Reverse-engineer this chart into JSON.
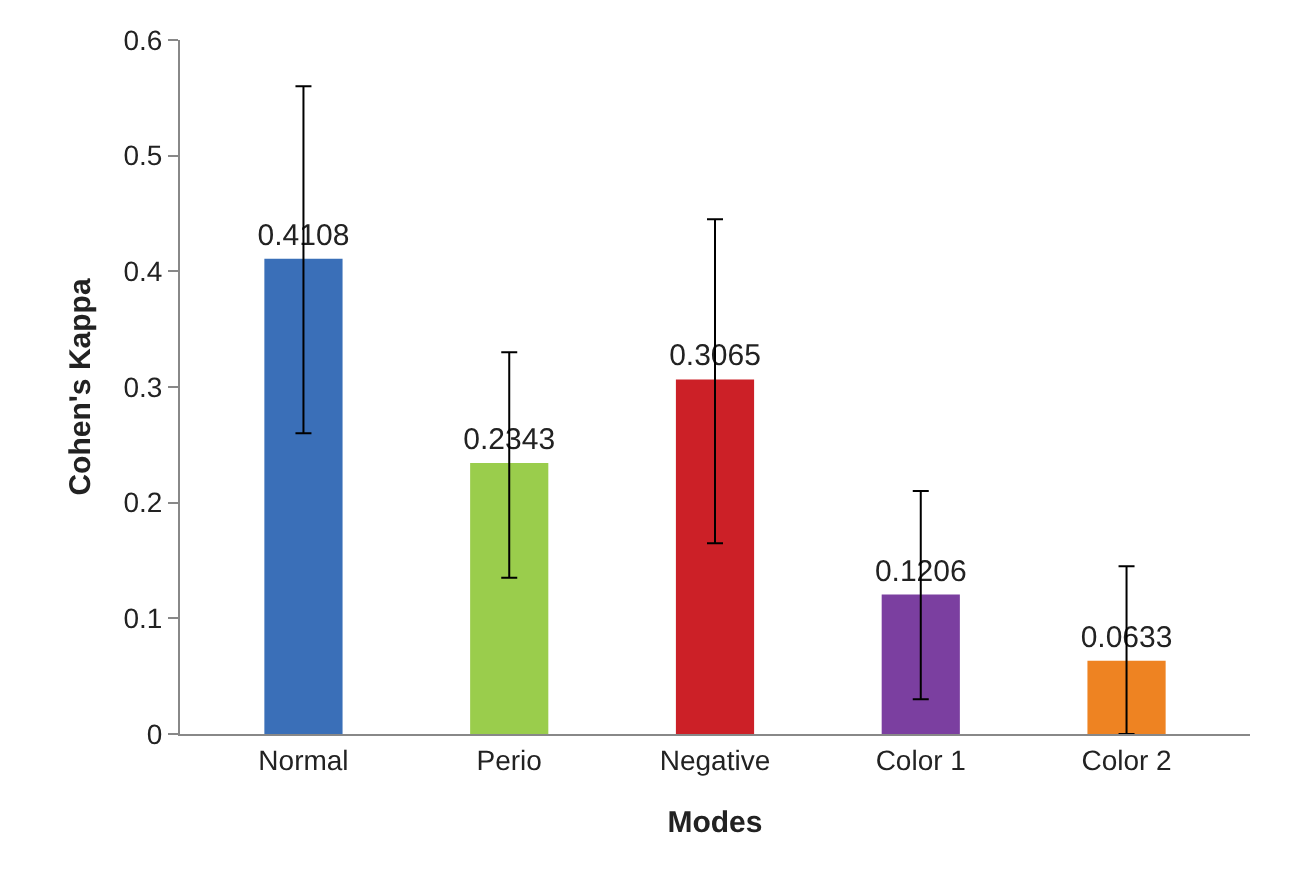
{
  "chart_data": {
    "type": "bar",
    "xlabel": "Modes",
    "ylabel": "Cohen's Kappa",
    "categories": [
      "Normal",
      "Perio",
      "Negative",
      "Color 1",
      "Color 2"
    ],
    "values": [
      0.4108,
      0.2343,
      0.3065,
      0.1206,
      0.0633
    ],
    "colors": [
      "#3a6fb8",
      "#9acd4c",
      "#cc2027",
      "#7b3fa0",
      "#ee8322"
    ],
    "errors": [
      [
        0.26,
        0.56
      ],
      [
        0.135,
        0.33
      ],
      [
        0.165,
        0.445
      ],
      [
        0.03,
        0.21
      ],
      [
        0,
        0.145
      ]
    ],
    "data_labels": true,
    "ylim": [
      0,
      0.6
    ],
    "yticks": [
      0,
      0.1,
      0.2,
      0.3,
      0.4,
      0.5,
      0.6
    ],
    "grid": false
  }
}
